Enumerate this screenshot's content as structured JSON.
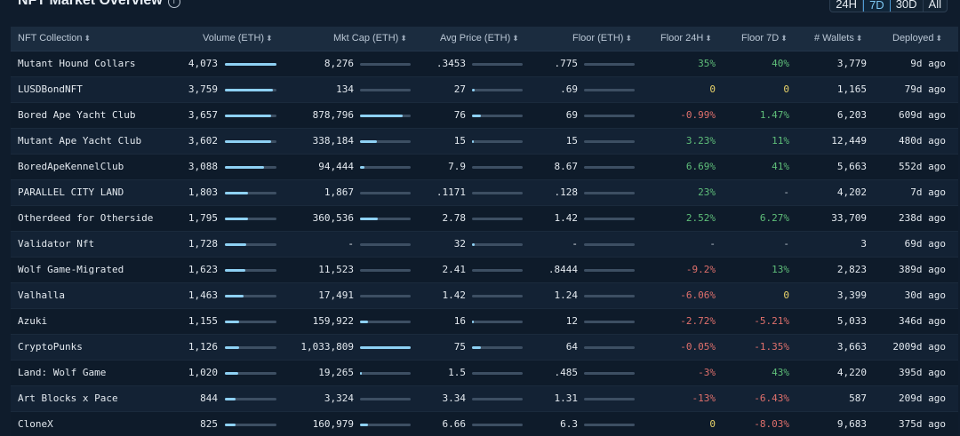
{
  "header": {
    "title": "NFT Market Overview",
    "info_icon": "i",
    "tabs": [
      "24H",
      "7D",
      "30D",
      "All"
    ],
    "active_tab": "7D"
  },
  "columns": {
    "collection": "NFT Collection",
    "volume": "Volume (ETH)",
    "mktcap": "Mkt Cap (ETH)",
    "avgprice": "Avg Price (ETH)",
    "floor": "Floor (ETH)",
    "floor24h": "Floor 24H",
    "floor7d": "Floor 7D",
    "wallets": "# Wallets",
    "deployed": "Deployed",
    "sort_glyph": "⬍"
  },
  "colors": {
    "positive": "#5fbf7a",
    "negative": "#e0706c",
    "zero": "#e8d36a",
    "bar": "#8ed1f4"
  },
  "rows": [
    {
      "name": "Mutant Hound Collars",
      "volume": "4,073",
      "volume_frac": 1.0,
      "mktcap": "8,276",
      "mktcap_frac": 0.0,
      "avg": ".3453",
      "avg_frac": 0.0,
      "floor": ".775",
      "floor_frac": 0.0,
      "f24": "35%",
      "f24s": "pos",
      "f7": "40%",
      "f7s": "pos",
      "wallets": "3,779",
      "deployed": "9d ago"
    },
    {
      "name": "LUSDBondNFT",
      "volume": "3,759",
      "volume_frac": 0.93,
      "mktcap": "134",
      "mktcap_frac": 0.0,
      "avg": "27",
      "avg_frac": 0.05,
      "floor": ".69",
      "floor_frac": 0.0,
      "f24": "0",
      "f24s": "zero",
      "f7": "0",
      "f7s": "zero",
      "wallets": "1,165",
      "deployed": "79d ago"
    },
    {
      "name": "Bored Ape Yacht Club",
      "volume": "3,657",
      "volume_frac": 0.9,
      "mktcap": "878,796",
      "mktcap_frac": 0.85,
      "avg": "76",
      "avg_frac": 0.18,
      "floor": "69",
      "floor_frac": 0.0,
      "f24": "-0.99%",
      "f24s": "neg",
      "f7": "1.47%",
      "f7s": "pos",
      "wallets": "6,203",
      "deployed": "609d ago"
    },
    {
      "name": "Mutant Ape Yacht Club",
      "volume": "3,602",
      "volume_frac": 0.89,
      "mktcap": "338,184",
      "mktcap_frac": 0.33,
      "avg": "15",
      "avg_frac": 0.02,
      "floor": "15",
      "floor_frac": 0.0,
      "f24": "3.23%",
      "f24s": "pos",
      "f7": "11%",
      "f7s": "pos",
      "wallets": "12,449",
      "deployed": "480d ago"
    },
    {
      "name": "BoredApeKennelClub",
      "volume": "3,088",
      "volume_frac": 0.76,
      "mktcap": "94,444",
      "mktcap_frac": 0.09,
      "avg": "7.9",
      "avg_frac": 0.0,
      "floor": "8.67",
      "floor_frac": 0.0,
      "f24": "6.69%",
      "f24s": "pos",
      "f7": "41%",
      "f7s": "pos",
      "wallets": "5,663",
      "deployed": "552d ago"
    },
    {
      "name": "PARALLEL CITY LAND",
      "volume": "1,803",
      "volume_frac": 0.45,
      "mktcap": "1,867",
      "mktcap_frac": 0.0,
      "avg": ".1171",
      "avg_frac": 0.0,
      "floor": ".128",
      "floor_frac": 0.0,
      "f24": "23%",
      "f24s": "pos",
      "f7": "-",
      "f7s": "neu",
      "wallets": "4,202",
      "deployed": "7d ago"
    },
    {
      "name": "Otherdeed for Otherside",
      "volume": "1,795",
      "volume_frac": 0.44,
      "mktcap": "360,536",
      "mktcap_frac": 0.35,
      "avg": "2.78",
      "avg_frac": 0.0,
      "floor": "1.42",
      "floor_frac": 0.0,
      "f24": "2.52%",
      "f24s": "pos",
      "f7": "6.27%",
      "f7s": "pos",
      "wallets": "33,709",
      "deployed": "238d ago"
    },
    {
      "name": "Validator Nft",
      "volume": "1,728",
      "volume_frac": 0.42,
      "mktcap": "-",
      "mktcap_frac": 0.0,
      "avg": "32",
      "avg_frac": 0.06,
      "floor": "-",
      "floor_frac": 0.0,
      "f24": "-",
      "f24s": "neu",
      "f7": "-",
      "f7s": "neu",
      "wallets": "3",
      "deployed": "69d ago"
    },
    {
      "name": "Wolf Game-Migrated",
      "volume": "1,623",
      "volume_frac": 0.4,
      "mktcap": "11,523",
      "mktcap_frac": 0.0,
      "avg": "2.41",
      "avg_frac": 0.0,
      "floor": ".8444",
      "floor_frac": 0.0,
      "f24": "-9.2%",
      "f24s": "neg",
      "f7": "13%",
      "f7s": "pos",
      "wallets": "2,823",
      "deployed": "389d ago"
    },
    {
      "name": "Valhalla",
      "volume": "1,463",
      "volume_frac": 0.36,
      "mktcap": "17,491",
      "mktcap_frac": 0.0,
      "avg": "1.42",
      "avg_frac": 0.0,
      "floor": "1.24",
      "floor_frac": 0.0,
      "f24": "-6.06%",
      "f24s": "neg",
      "f7": "0",
      "f7s": "zero",
      "wallets": "3,399",
      "deployed": "30d ago"
    },
    {
      "name": "Azuki",
      "volume": "1,155",
      "volume_frac": 0.28,
      "mktcap": "159,922",
      "mktcap_frac": 0.15,
      "avg": "16",
      "avg_frac": 0.02,
      "floor": "12",
      "floor_frac": 0.0,
      "f24": "-2.72%",
      "f24s": "neg",
      "f7": "-5.21%",
      "f7s": "neg",
      "wallets": "5,033",
      "deployed": "346d ago"
    },
    {
      "name": "CryptoPunks",
      "volume": "1,126",
      "volume_frac": 0.27,
      "mktcap": "1,033,809",
      "mktcap_frac": 1.0,
      "avg": "75",
      "avg_frac": 0.18,
      "floor": "64",
      "floor_frac": 0.0,
      "f24": "-0.05%",
      "f24s": "neg",
      "f7": "-1.35%",
      "f7s": "neg",
      "wallets": "3,663",
      "deployed": "2009d ago"
    },
    {
      "name": "Land: Wolf Game",
      "volume": "1,020",
      "volume_frac": 0.25,
      "mktcap": "19,265",
      "mktcap_frac": 0.02,
      "avg": "1.5",
      "avg_frac": 0.0,
      "floor": ".485",
      "floor_frac": 0.0,
      "f24": "-3%",
      "f24s": "neg",
      "f7": "43%",
      "f7s": "pos",
      "wallets": "4,220",
      "deployed": "395d ago"
    },
    {
      "name": "Art Blocks x Pace",
      "volume": "844",
      "volume_frac": 0.2,
      "mktcap": "3,324",
      "mktcap_frac": 0.0,
      "avg": "3.34",
      "avg_frac": 0.0,
      "floor": "1.31",
      "floor_frac": 0.0,
      "f24": "-13%",
      "f24s": "neg",
      "f7": "-6.43%",
      "f7s": "neg",
      "wallets": "587",
      "deployed": "209d ago"
    },
    {
      "name": "CloneX",
      "volume": "825",
      "volume_frac": 0.2,
      "mktcap": "160,979",
      "mktcap_frac": 0.15,
      "avg": "6.66",
      "avg_frac": 0.0,
      "floor": "6.3",
      "floor_frac": 0.0,
      "f24": "0",
      "f24s": "zero",
      "f7": "-8.03%",
      "f7s": "neg",
      "wallets": "9,683",
      "deployed": "375d ago"
    }
  ]
}
